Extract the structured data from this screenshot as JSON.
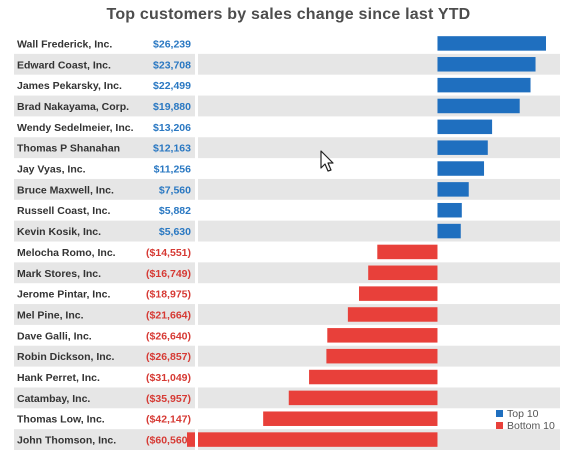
{
  "title": "Top customers by sales change since last YTD",
  "colors": {
    "positive": "#1f6fbf",
    "negative": "#e8403a",
    "positive_text": "#2a78c2",
    "negative_text": "#d63a34",
    "band": "#e6e6e6"
  },
  "legend": [
    {
      "label": "Top 10",
      "color": "#1f6fbf"
    },
    {
      "label": "Bottom 10",
      "color": "#e8403a"
    }
  ],
  "chart_data": {
    "type": "bar",
    "orientation": "horizontal",
    "title": "Top customers by sales change since last YTD",
    "categories": [
      "Wall Frederick, Inc.",
      "Edward Coast, Inc.",
      "James Pekarsky, Inc.",
      "Brad Nakayama, Corp.",
      "Wendy Sedelmeier, Inc.",
      "Thomas P Shanahan",
      "Jay Vyas, Inc.",
      "Bruce Maxwell, Inc.",
      "Russell Coast, Inc.",
      "Kevin Kosik, Inc.",
      "Melocha Romo, Inc.",
      "Mark Stores, Inc.",
      "Jerome Pintar, Inc.",
      "Mel Pine, Inc.",
      "Dave Galli, Inc.",
      "Robin Dickson, Inc.",
      "Hank Perret, Inc.",
      "Catambay, Inc.",
      "Thomas Low, Inc.",
      "John Thomson, Inc."
    ],
    "values": [
      26239,
      23708,
      22499,
      19880,
      13206,
      12163,
      11256,
      7560,
      5882,
      5630,
      -14551,
      -16749,
      -18975,
      -21664,
      -26640,
      -26857,
      -31049,
      -35957,
      -42147,
      -60560
    ],
    "labels": [
      "$26,239",
      "$23,708",
      "$22,499",
      "$19,880",
      "$13,206",
      "$12,163",
      "$11,256",
      "$7,560",
      "$5,882",
      "$5,630",
      "($14,551)",
      "($16,749)",
      "($18,975)",
      "($21,664)",
      "($26,640)",
      "($26,857)",
      "($31,049)",
      "($35,957)",
      "($42,147)",
      "($60,560)"
    ],
    "series_groups": [
      "Top 10",
      "Top 10",
      "Top 10",
      "Top 10",
      "Top 10",
      "Top 10",
      "Top 10",
      "Top 10",
      "Top 10",
      "Top 10",
      "Bottom 10",
      "Bottom 10",
      "Bottom 10",
      "Bottom 10",
      "Bottom 10",
      "Bottom 10",
      "Bottom 10",
      "Bottom 10",
      "Bottom 10",
      "Bottom 10"
    ],
    "xlim": [
      -60560,
      26239
    ],
    "grid": false,
    "legend_position": "bottom-right"
  }
}
